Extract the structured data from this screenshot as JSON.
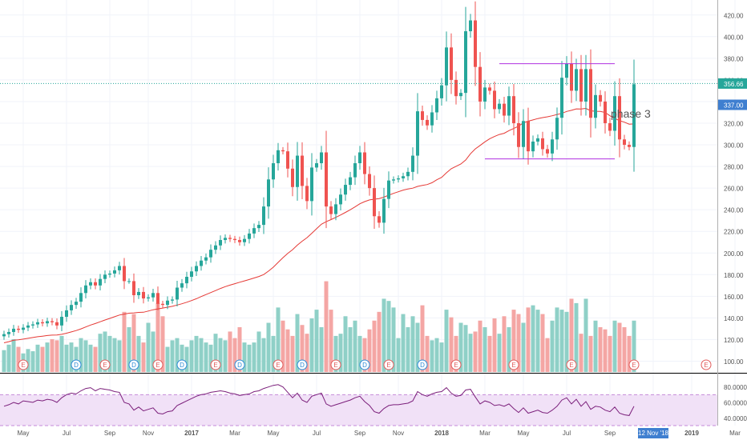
{
  "colors": {
    "up": "#26a69a",
    "down": "#ef5350",
    "up_volume": "#8fd0c7",
    "down_volume": "#f4a6a4",
    "ma_line": "#e53935",
    "range_lines": "#b030e0",
    "rsi_line": "#7b1f7b",
    "rsi_band": "#f1e1f7",
    "current_price_line": "#26a69a",
    "price_tag_bg": "#26a69a",
    "ma_tag_bg": "#3f7fd0",
    "date_tag_bg": "#3f7fd0",
    "earnings_color": "#e25c5c",
    "dividend_color": "#2e8bd6",
    "grid": "#f0f3fa",
    "axis_text": "#555555"
  },
  "annotation": {
    "text": "phase 3"
  },
  "price_tag": "356.66",
  "ma_tag": "337.00",
  "date_tag": "12 Nov '18",
  "chart_data": [
    {
      "type": "candlestick",
      "title": "",
      "ylim": [
        90,
        425
      ],
      "y_ticks": [
        100,
        120,
        140,
        160,
        180,
        200,
        220,
        240,
        260,
        280,
        300,
        320,
        340,
        360,
        380,
        400,
        420
      ],
      "y_tick_labels": [
        "100.00",
        "120.00",
        "140.00",
        "160.00",
        "180.00",
        "200.00",
        "220.00",
        "240.00",
        "260.00",
        "280.00",
        "300.00",
        "320.00",
        "340.00",
        "360.00",
        "380.00",
        "400.00",
        "420.00"
      ],
      "x_tick_labels": [
        "May",
        "Jul",
        "Sep",
        "Nov",
        "2017",
        "Mar",
        "May",
        "Jul",
        "Sep",
        "Nov",
        "2018",
        "Mar",
        "May",
        "Jul",
        "Sep",
        "12 Nov '18",
        "2019",
        "Mar"
      ],
      "x_tick_weeks": [
        4,
        13,
        22,
        30,
        39,
        48,
        56,
        65,
        74,
        82,
        91,
        100,
        108,
        117,
        126,
        135,
        143,
        152
      ],
      "x_tick_bold": [
        false,
        false,
        false,
        false,
        true,
        false,
        false,
        false,
        false,
        false,
        true,
        false,
        false,
        false,
        false,
        false,
        true,
        false
      ],
      "current_price": 356.66,
      "ma_last": 337.0,
      "ma_length": 30,
      "horizontal_lines": [
        {
          "value": 375,
          "from_week": 103,
          "to_week": 127
        },
        {
          "value": 287,
          "from_week": 100,
          "to_week": 127
        }
      ],
      "close": [
        125,
        127,
        130,
        129,
        131,
        133,
        134,
        136,
        135,
        137,
        136,
        133,
        141,
        147,
        152,
        155,
        163,
        170,
        173,
        170,
        176,
        180,
        181,
        184,
        188,
        174,
        174,
        161,
        164,
        158,
        159,
        163,
        153,
        152,
        156,
        157,
        168,
        172,
        178,
        183,
        188,
        193,
        196,
        203,
        207,
        212,
        214,
        213,
        212,
        210,
        213,
        218,
        223,
        226,
        243,
        268,
        283,
        295,
        294,
        278,
        261,
        290,
        262,
        248,
        279,
        283,
        293,
        243,
        236,
        245,
        254,
        263,
        270,
        283,
        293,
        273,
        260,
        234,
        228,
        250,
        267,
        268,
        269,
        271,
        275,
        290,
        331,
        323,
        318,
        330,
        343,
        355,
        390,
        360,
        345,
        348,
        405,
        415,
        372,
        340,
        353,
        350,
        333,
        338,
        327,
        345,
        320,
        298,
        322,
        294,
        303,
        306,
        296,
        292,
        305,
        325,
        362,
        375,
        350,
        370,
        340,
        370,
        325,
        346,
        340,
        320,
        313,
        345,
        305,
        300,
        298,
        356
      ],
      "volume_ylim": [
        95,
        185
      ],
      "volume": [
        115,
        120,
        125,
        118,
        112,
        116,
        114,
        120,
        118,
        122,
        125,
        124,
        128,
        120,
        122,
        118,
        126,
        124,
        120,
        118,
        130,
        132,
        128,
        126,
        124,
        150,
        136,
        148,
        128,
        122,
        140,
        132,
        158,
        146,
        118,
        124,
        126,
        120,
        118,
        124,
        128,
        126,
        122,
        120,
        130,
        126,
        124,
        132,
        126,
        136,
        122,
        120,
        122,
        132,
        126,
        140,
        128,
        154,
        142,
        134,
        128,
        148,
        138,
        130,
        144,
        152,
        136,
        178,
        152,
        128,
        130,
        146,
        136,
        142,
        128,
        126,
        134,
        142,
        150,
        162,
        160,
        154,
        126,
        148,
        136,
        146,
        140,
        156,
        128,
        124,
        126,
        122,
        152,
        145,
        128,
        140,
        138,
        130,
        132,
        142,
        136,
        128,
        144,
        130,
        146,
        136,
        152,
        148,
        140,
        154,
        156,
        152,
        148,
        126,
        142,
        154,
        152,
        150,
        162,
        158,
        130,
        162,
        128,
        142,
        136,
        134,
        128,
        142,
        140,
        136,
        128,
        142
      ],
      "events": [
        {
          "week": 4,
          "type": "E"
        },
        {
          "week": 15,
          "type": "D"
        },
        {
          "week": 21,
          "type": "E"
        },
        {
          "week": 27,
          "type": "D"
        },
        {
          "week": 32,
          "type": "E"
        },
        {
          "week": 37,
          "type": "D"
        },
        {
          "week": 44,
          "type": "E"
        },
        {
          "week": 49,
          "type": "D"
        },
        {
          "week": 57,
          "type": "E"
        },
        {
          "week": 62,
          "type": "D"
        },
        {
          "week": 69,
          "type": "E"
        },
        {
          "week": 75,
          "type": "D"
        },
        {
          "week": 80,
          "type": "E"
        },
        {
          "week": 87,
          "type": "D"
        },
        {
          "week": 94,
          "type": "E"
        },
        {
          "week": 106,
          "type": "E"
        },
        {
          "week": 118,
          "type": "E"
        },
        {
          "week": 131,
          "type": "E"
        },
        {
          "week": 146,
          "type": "E"
        }
      ]
    },
    {
      "type": "line",
      "name": "RSI",
      "ylim": [
        30,
        90
      ],
      "band": [
        30,
        70
      ],
      "y_ticks": [
        40,
        60,
        80
      ],
      "y_tick_labels": [
        "40.0000",
        "60.0000",
        "80.0000"
      ],
      "values": [
        55,
        57,
        60,
        58,
        62,
        61,
        60,
        63,
        62,
        64,
        63,
        60,
        66,
        70,
        72,
        71,
        75,
        78,
        79,
        75,
        78,
        77,
        76,
        74,
        73,
        60,
        58,
        50,
        54,
        49,
        51,
        53,
        46,
        45,
        48,
        49,
        56,
        59,
        62,
        65,
        68,
        70,
        71,
        73,
        74,
        75,
        74,
        72,
        71,
        69,
        70,
        71,
        74,
        75,
        78,
        80,
        82,
        83,
        80,
        73,
        66,
        72,
        63,
        60,
        68,
        70,
        72,
        58,
        55,
        57,
        59,
        61,
        63,
        66,
        68,
        61,
        56,
        48,
        46,
        52,
        56,
        57,
        57,
        58,
        59,
        62,
        74,
        70,
        68,
        71,
        73,
        74,
        79,
        72,
        68,
        69,
        76,
        77,
        67,
        58,
        62,
        60,
        56,
        57,
        55,
        58,
        52,
        47,
        53,
        46,
        48,
        50,
        47,
        46,
        50,
        55,
        63,
        66,
        58,
        64,
        55,
        61,
        51,
        55,
        54,
        50,
        48,
        54,
        46,
        44,
        43,
        55
      ]
    }
  ]
}
